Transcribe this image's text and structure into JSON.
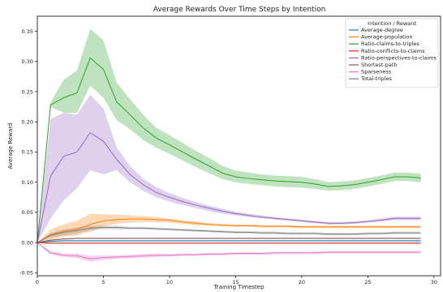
{
  "chart_data": {
    "type": "line",
    "title": "Average Rewards Over Time Steps by Intention",
    "xlabel": "Training Timestep",
    "ylabel": "Average Reward",
    "xlim": [
      0,
      30.5
    ],
    "ylim": [
      -0.055,
      0.375
    ],
    "xticks": [
      0,
      5,
      10,
      15,
      20,
      25,
      30
    ],
    "yticks": [
      -0.05,
      0.0,
      0.05,
      0.1,
      0.15,
      0.2,
      0.25,
      0.3,
      0.35
    ],
    "ytick_labels": [
      "-0.05",
      "0.00",
      "0.05",
      "0.10",
      "0.15",
      "0.20",
      "0.25",
      "0.30",
      "0.35"
    ],
    "grid": false,
    "legend": {
      "title": "Intention / Reward",
      "placement": "top-right"
    },
    "x": [
      0,
      1,
      2,
      3,
      4,
      5,
      6,
      7,
      8,
      9,
      10,
      11,
      12,
      13,
      14,
      15,
      16,
      17,
      18,
      19,
      20,
      21,
      22,
      23,
      24,
      25,
      26,
      27,
      28,
      29
    ],
    "series": [
      {
        "name": "Average-degree",
        "color": "#1f77b4",
        "values": [
          0.0,
          0.002,
          0.003,
          0.003,
          0.003,
          0.003,
          0.003,
          0.003,
          0.003,
          0.003,
          0.003,
          0.003,
          0.003,
          0.003,
          0.003,
          0.003,
          0.003,
          0.003,
          0.003,
          0.003,
          0.003,
          0.003,
          0.003,
          0.003,
          0.003,
          0.003,
          0.003,
          0.003,
          0.003,
          0.003
        ],
        "lower": [
          0.0,
          0.001,
          0.002,
          0.002,
          0.002,
          0.002,
          0.002,
          0.002,
          0.002,
          0.002,
          0.002,
          0.002,
          0.002,
          0.002,
          0.002,
          0.002,
          0.002,
          0.002,
          0.002,
          0.002,
          0.002,
          0.002,
          0.002,
          0.002,
          0.002,
          0.002,
          0.002,
          0.002,
          0.002,
          0.002
        ],
        "upper": [
          0.0,
          0.003,
          0.004,
          0.004,
          0.004,
          0.004,
          0.004,
          0.004,
          0.004,
          0.004,
          0.004,
          0.004,
          0.004,
          0.004,
          0.004,
          0.004,
          0.004,
          0.004,
          0.004,
          0.004,
          0.004,
          0.004,
          0.004,
          0.004,
          0.004,
          0.004,
          0.004,
          0.004,
          0.004,
          0.004
        ]
      },
      {
        "name": "Average-population",
        "color": "#ff7f0e",
        "values": [
          0.0,
          0.013,
          0.019,
          0.022,
          0.03,
          0.036,
          0.038,
          0.039,
          0.039,
          0.038,
          0.037,
          0.034,
          0.032,
          0.03,
          0.029,
          0.028,
          0.028,
          0.027,
          0.027,
          0.027,
          0.026,
          0.026,
          0.026,
          0.026,
          0.026,
          0.026,
          0.026,
          0.026,
          0.026,
          0.026
        ],
        "lower": [
          0.0,
          0.005,
          0.01,
          0.012,
          0.018,
          0.027,
          0.031,
          0.033,
          0.034,
          0.034,
          0.033,
          0.031,
          0.029,
          0.028,
          0.027,
          0.026,
          0.026,
          0.025,
          0.025,
          0.025,
          0.024,
          0.024,
          0.024,
          0.024,
          0.024,
          0.024,
          0.024,
          0.024,
          0.024,
          0.024
        ],
        "upper": [
          0.0,
          0.022,
          0.03,
          0.036,
          0.048,
          0.047,
          0.046,
          0.045,
          0.044,
          0.042,
          0.04,
          0.037,
          0.035,
          0.032,
          0.031,
          0.03,
          0.03,
          0.029,
          0.029,
          0.029,
          0.028,
          0.028,
          0.028,
          0.028,
          0.028,
          0.028,
          0.028,
          0.028,
          0.028,
          0.028
        ]
      },
      {
        "name": "Ratio-claims-to-triples",
        "color": "#2ca02c",
        "values": [
          0.0,
          0.228,
          0.24,
          0.248,
          0.306,
          0.287,
          0.233,
          0.212,
          0.19,
          0.173,
          0.162,
          0.15,
          0.138,
          0.127,
          0.115,
          0.109,
          0.106,
          0.104,
          0.102,
          0.101,
          0.1,
          0.097,
          0.093,
          0.094,
          0.096,
          0.1,
          0.104,
          0.109,
          0.109,
          0.107
        ],
        "lower": [
          0.0,
          0.225,
          0.215,
          0.215,
          0.26,
          0.24,
          0.203,
          0.188,
          0.17,
          0.157,
          0.147,
          0.136,
          0.125,
          0.115,
          0.105,
          0.1,
          0.097,
          0.095,
          0.093,
          0.092,
          0.091,
          0.089,
          0.086,
          0.087,
          0.089,
          0.093,
          0.097,
          0.102,
          0.102,
          0.1
        ],
        "upper": [
          0.0,
          0.232,
          0.27,
          0.285,
          0.354,
          0.335,
          0.265,
          0.238,
          0.212,
          0.19,
          0.178,
          0.165,
          0.152,
          0.14,
          0.127,
          0.119,
          0.116,
          0.113,
          0.111,
          0.11,
          0.109,
          0.105,
          0.1,
          0.101,
          0.103,
          0.107,
          0.111,
          0.116,
          0.116,
          0.114
        ]
      },
      {
        "name": "Ratio-conflicts-to-claims",
        "color": "#d62728",
        "values": [
          0.0,
          -0.001,
          -0.001,
          -0.001,
          -0.001,
          -0.001,
          -0.001,
          -0.001,
          -0.001,
          -0.001,
          -0.001,
          -0.001,
          -0.001,
          -0.001,
          -0.001,
          -0.001,
          -0.001,
          -0.001,
          -0.001,
          -0.001,
          -0.001,
          -0.001,
          -0.001,
          -0.001,
          -0.001,
          -0.001,
          -0.001,
          -0.001,
          -0.001,
          -0.001
        ],
        "lower": [
          0.0,
          -0.002,
          -0.002,
          -0.002,
          -0.002,
          -0.002,
          -0.002,
          -0.002,
          -0.002,
          -0.002,
          -0.002,
          -0.002,
          -0.002,
          -0.002,
          -0.002,
          -0.002,
          -0.002,
          -0.002,
          -0.002,
          -0.002,
          -0.002,
          -0.002,
          -0.002,
          -0.002,
          -0.002,
          -0.002,
          -0.002,
          -0.002,
          -0.002,
          -0.002
        ],
        "upper": [
          0.0,
          0.0,
          0.0,
          0.0,
          0.0,
          0.0,
          0.0,
          0.0,
          0.0,
          0.0,
          0.0,
          0.0,
          0.0,
          0.0,
          0.0,
          0.0,
          0.0,
          0.0,
          0.0,
          0.0,
          0.0,
          0.0,
          0.0,
          0.0,
          0.0,
          0.0,
          0.0,
          0.0,
          0.0,
          0.0
        ]
      },
      {
        "name": "Ratio-perspectives-to-claims",
        "color": "#9467bd",
        "values": [
          0.0,
          0.11,
          0.143,
          0.15,
          0.182,
          0.168,
          0.138,
          0.113,
          0.096,
          0.083,
          0.075,
          0.068,
          0.062,
          0.057,
          0.052,
          0.048,
          0.045,
          0.042,
          0.04,
          0.038,
          0.036,
          0.034,
          0.032,
          0.032,
          0.033,
          0.035,
          0.037,
          0.04,
          0.04,
          0.04
        ],
        "lower": [
          0.0,
          0.04,
          0.07,
          0.09,
          0.12,
          0.113,
          0.12,
          0.1,
          0.086,
          0.075,
          0.068,
          0.062,
          0.057,
          0.052,
          0.048,
          0.045,
          0.042,
          0.04,
          0.038,
          0.036,
          0.034,
          0.032,
          0.03,
          0.03,
          0.031,
          0.033,
          0.035,
          0.037,
          0.037,
          0.037
        ],
        "upper": [
          0.0,
          0.205,
          0.215,
          0.212,
          0.245,
          0.222,
          0.158,
          0.127,
          0.106,
          0.092,
          0.082,
          0.074,
          0.067,
          0.061,
          0.056,
          0.051,
          0.048,
          0.045,
          0.042,
          0.04,
          0.038,
          0.036,
          0.034,
          0.034,
          0.035,
          0.037,
          0.04,
          0.043,
          0.043,
          0.043
        ]
      },
      {
        "name": "Shortest-path",
        "color": "#8c564b",
        "values": [
          0.0,
          0.004,
          0.006,
          0.007,
          0.007,
          0.007,
          0.007,
          0.007,
          0.007,
          0.007,
          0.007,
          0.007,
          0.007,
          0.007,
          0.007,
          0.007,
          0.007,
          0.007,
          0.007,
          0.007,
          0.007,
          0.007,
          0.007,
          0.007,
          0.007,
          0.007,
          0.007,
          0.007,
          0.007,
          0.007
        ],
        "lower": [
          0.0,
          0.003,
          0.005,
          0.006,
          0.006,
          0.006,
          0.006,
          0.006,
          0.006,
          0.006,
          0.006,
          0.006,
          0.006,
          0.006,
          0.006,
          0.006,
          0.006,
          0.006,
          0.006,
          0.006,
          0.006,
          0.006,
          0.006,
          0.006,
          0.006,
          0.006,
          0.006,
          0.006,
          0.006,
          0.006
        ],
        "upper": [
          0.0,
          0.005,
          0.007,
          0.008,
          0.008,
          0.008,
          0.008,
          0.008,
          0.008,
          0.008,
          0.008,
          0.008,
          0.008,
          0.008,
          0.008,
          0.008,
          0.008,
          0.008,
          0.008,
          0.008,
          0.008,
          0.008,
          0.008,
          0.008,
          0.008,
          0.008,
          0.008,
          0.008,
          0.008,
          0.008
        ]
      },
      {
        "name": "Sparseness",
        "color": "#e377c2",
        "values": [
          0.0,
          -0.017,
          -0.021,
          -0.022,
          -0.027,
          -0.025,
          -0.024,
          -0.023,
          -0.022,
          -0.021,
          -0.021,
          -0.02,
          -0.02,
          -0.019,
          -0.019,
          -0.018,
          -0.018,
          -0.018,
          -0.017,
          -0.017,
          -0.017,
          -0.017,
          -0.016,
          -0.016,
          -0.016,
          -0.016,
          -0.016,
          -0.016,
          -0.016,
          -0.016
        ],
        "lower": [
          0.0,
          -0.02,
          -0.024,
          -0.026,
          -0.032,
          -0.029,
          -0.027,
          -0.026,
          -0.025,
          -0.024,
          -0.023,
          -0.022,
          -0.022,
          -0.021,
          -0.021,
          -0.02,
          -0.02,
          -0.02,
          -0.019,
          -0.019,
          -0.019,
          -0.019,
          -0.018,
          -0.018,
          -0.018,
          -0.018,
          -0.018,
          -0.018,
          -0.018,
          -0.018
        ],
        "upper": [
          0.0,
          -0.014,
          -0.018,
          -0.018,
          -0.022,
          -0.021,
          -0.021,
          -0.02,
          -0.019,
          -0.018,
          -0.019,
          -0.018,
          -0.018,
          -0.017,
          -0.017,
          -0.016,
          -0.016,
          -0.016,
          -0.015,
          -0.015,
          -0.015,
          -0.015,
          -0.014,
          -0.014,
          -0.014,
          -0.014,
          -0.014,
          -0.014,
          -0.014,
          -0.014
        ]
      },
      {
        "name": "Total-triples",
        "color": "#7f7f7f",
        "values": [
          0.0,
          0.012,
          0.017,
          0.02,
          0.024,
          0.025,
          0.025,
          0.024,
          0.024,
          0.023,
          0.022,
          0.021,
          0.02,
          0.019,
          0.018,
          0.017,
          0.017,
          0.016,
          0.016,
          0.015,
          0.015,
          0.015,
          0.014,
          0.014,
          0.014,
          0.015,
          0.015,
          0.016,
          0.016,
          0.016
        ],
        "lower": [
          0.0,
          0.008,
          0.012,
          0.015,
          0.02,
          0.022,
          0.022,
          0.022,
          0.022,
          0.021,
          0.02,
          0.019,
          0.018,
          0.017,
          0.016,
          0.015,
          0.015,
          0.014,
          0.014,
          0.013,
          0.013,
          0.013,
          0.012,
          0.012,
          0.012,
          0.013,
          0.013,
          0.014,
          0.014,
          0.014
        ],
        "upper": [
          0.0,
          0.016,
          0.022,
          0.025,
          0.028,
          0.028,
          0.028,
          0.026,
          0.026,
          0.025,
          0.024,
          0.023,
          0.022,
          0.021,
          0.02,
          0.019,
          0.019,
          0.018,
          0.018,
          0.017,
          0.017,
          0.017,
          0.016,
          0.016,
          0.016,
          0.017,
          0.017,
          0.018,
          0.018,
          0.018
        ]
      }
    ]
  }
}
